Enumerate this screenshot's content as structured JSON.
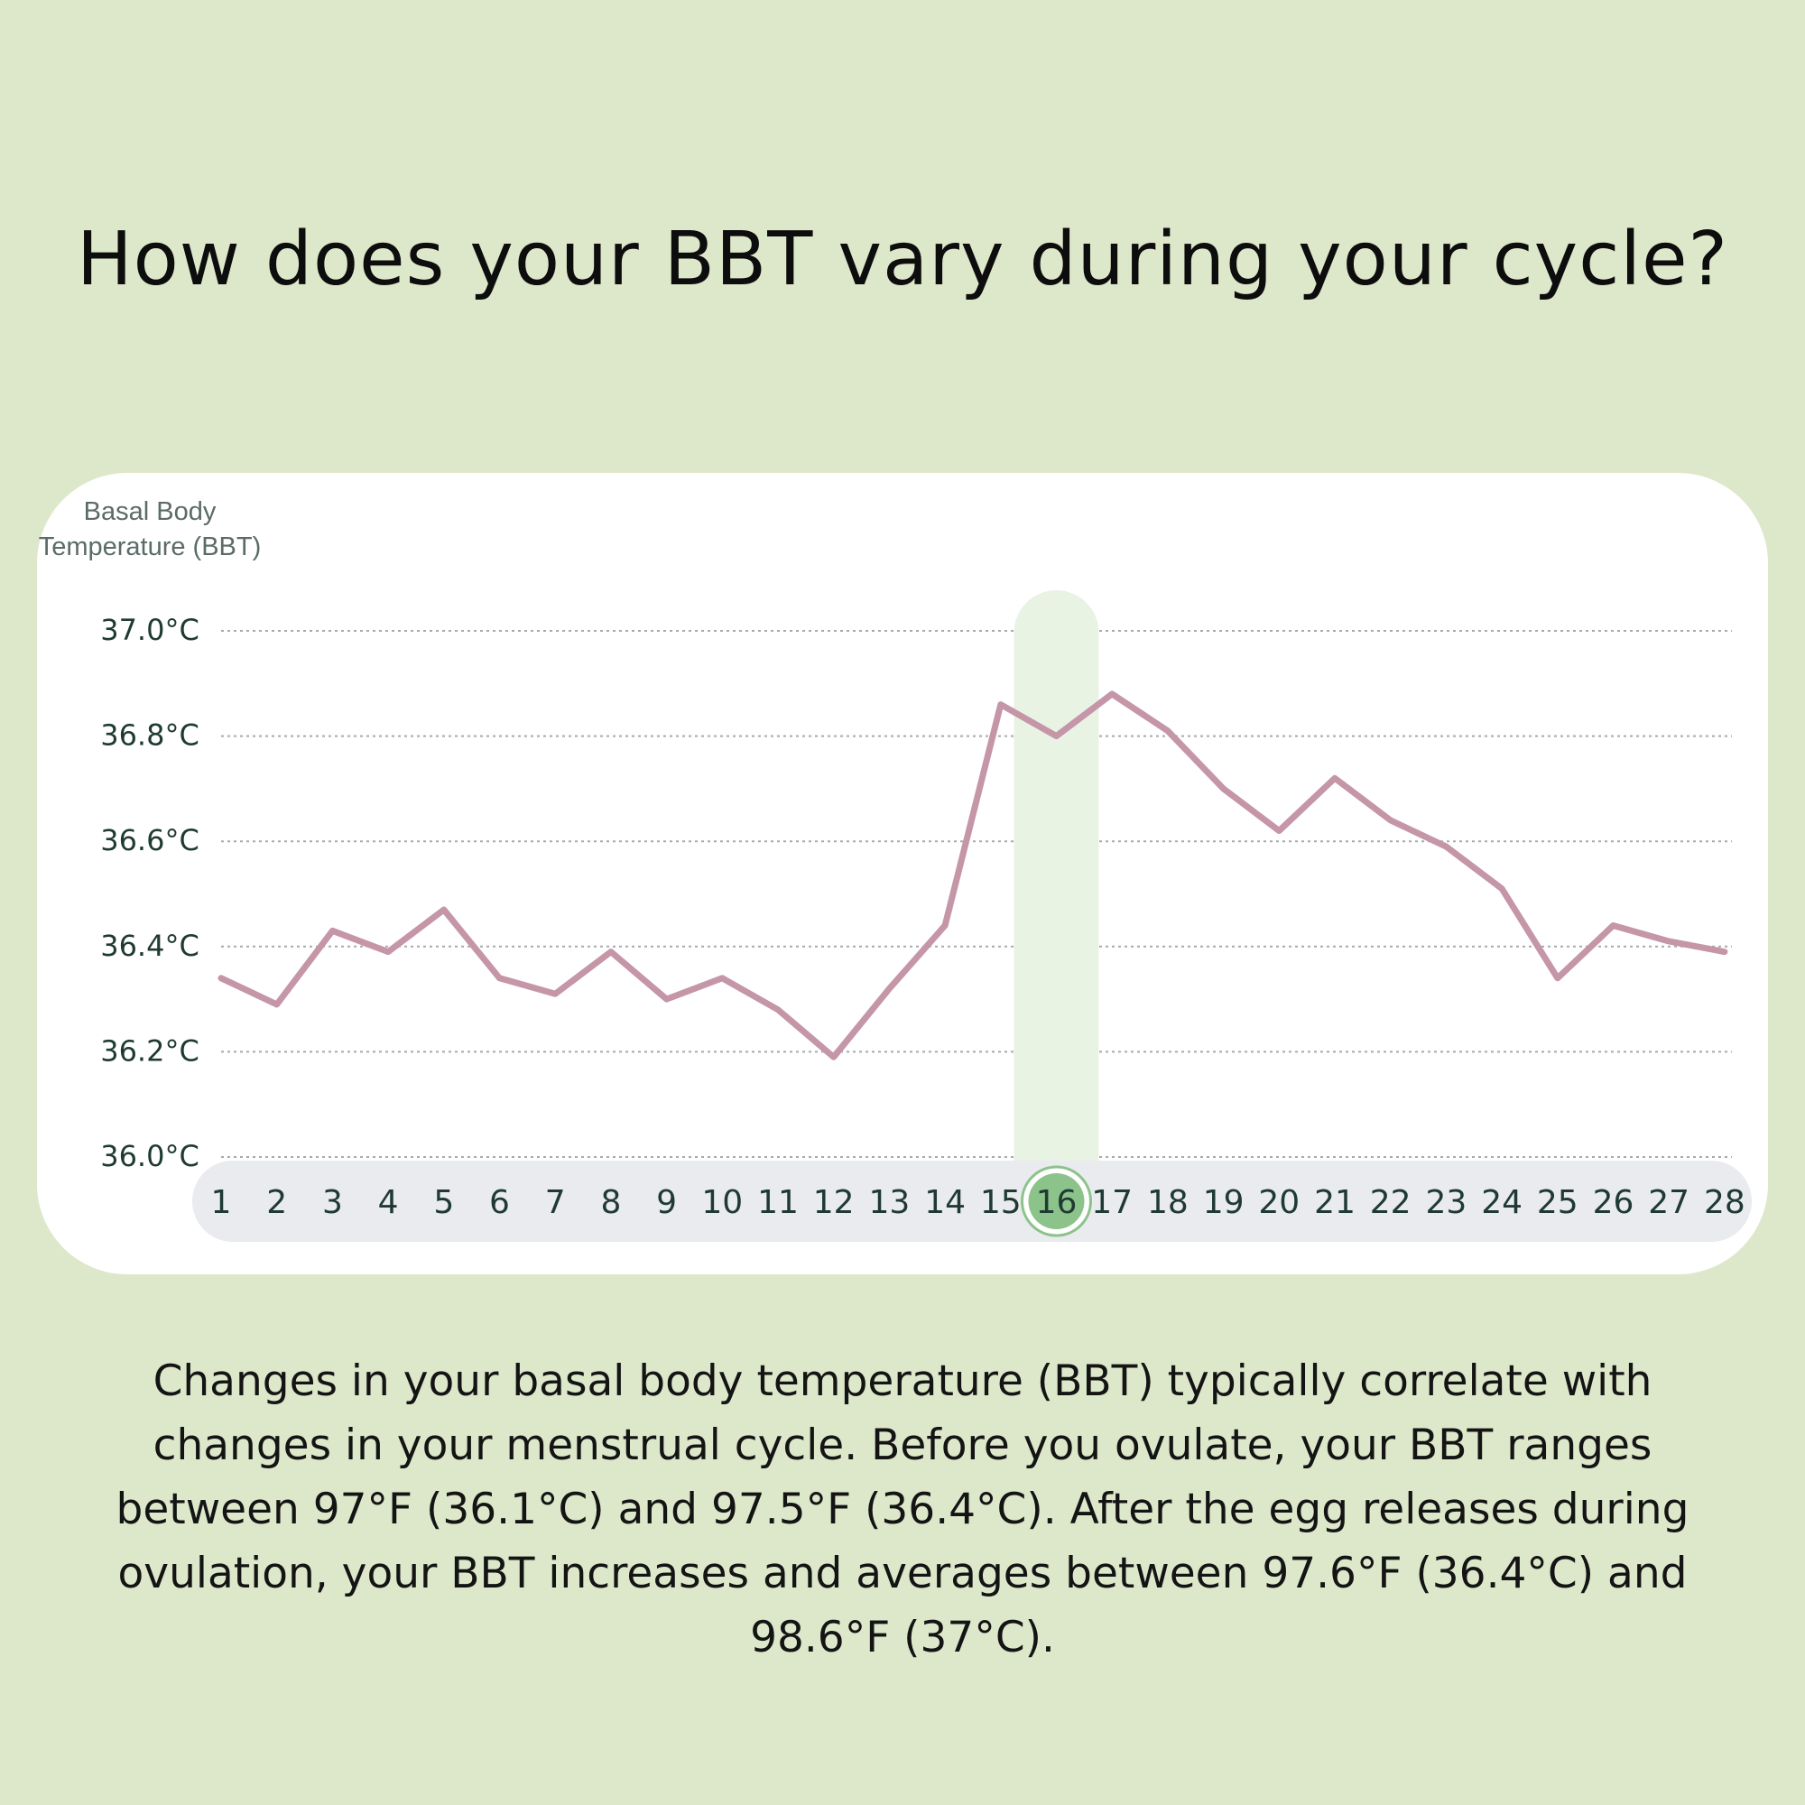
{
  "page": {
    "title": "How does your BBT vary during your cycle?",
    "description": "Changes in your basal body temperature (BBT) typically correlate with changes in your menstrual cycle. Before you ovulate, your BBT ranges between 97°F (36.1°C) and 97.5°F (36.4°C). After the egg releases during ovulation, your BBT increases and averages between 97.6°F (36.4°C) and 98.6°F (37°C)."
  },
  "colors": {
    "background": "#dde8cb",
    "card": "#ffffff",
    "line": "#c595a8",
    "highlight_band": "#e8f3e4",
    "highlight_circle": "#8cc38a",
    "day_track": "#e9ebee",
    "tick_text": "#1f3a33",
    "grid": "#a9a9a9"
  },
  "chart_data": {
    "type": "line",
    "ylabel_lines": [
      "Basal Body",
      "Temperature (BBT)"
    ],
    "y_ticks": [
      37.0,
      36.8,
      36.6,
      36.4,
      36.2,
      36.0
    ],
    "y_tick_labels": [
      "37.0°C",
      "36.8°C",
      "36.6°C",
      "36.4°C",
      "36.2°C",
      "36.0°C"
    ],
    "ylim": [
      36.0,
      37.0
    ],
    "x": [
      1,
      2,
      3,
      4,
      5,
      6,
      7,
      8,
      9,
      10,
      11,
      12,
      13,
      14,
      15,
      16,
      17,
      18,
      19,
      20,
      21,
      22,
      23,
      24,
      25,
      26,
      27,
      28
    ],
    "x_tick_labels": [
      "1",
      "2",
      "3",
      "4",
      "5",
      "6",
      "7",
      "8",
      "9",
      "10",
      "11",
      "12",
      "13",
      "14",
      "15",
      "16",
      "17",
      "18",
      "19",
      "20",
      "21",
      "22",
      "23",
      "24",
      "25",
      "26",
      "27",
      "28"
    ],
    "values": [
      36.34,
      36.29,
      36.43,
      36.39,
      36.47,
      36.34,
      36.31,
      36.39,
      36.3,
      36.34,
      36.28,
      36.19,
      36.32,
      36.44,
      36.86,
      36.8,
      36.88,
      36.81,
      36.7,
      36.62,
      36.72,
      36.64,
      36.59,
      36.51,
      36.34,
      36.44,
      36.41,
      36.39
    ],
    "highlight_day": 16,
    "grid": true
  }
}
